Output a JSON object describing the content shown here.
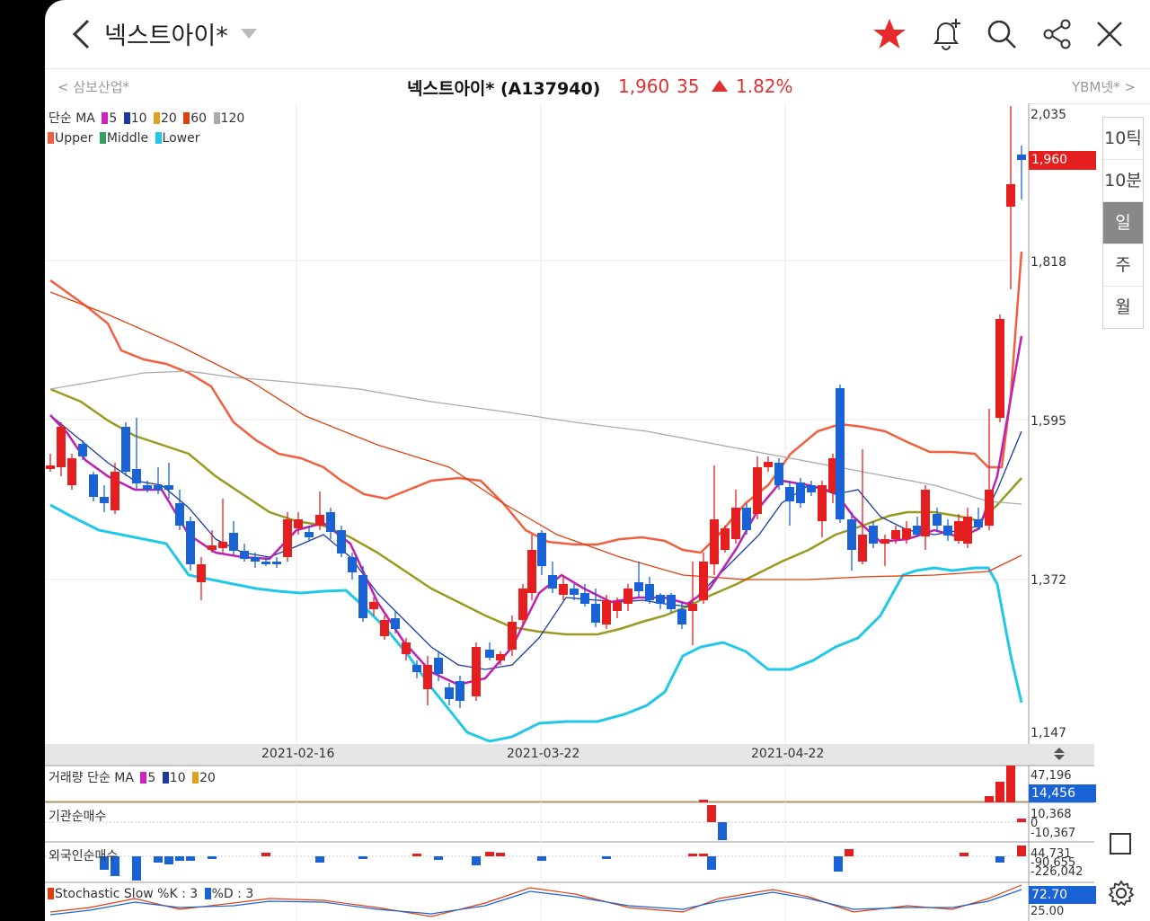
{
  "header": {
    "title": "넥스트아이*",
    "icons": [
      "back-icon",
      "star-icon",
      "bell-add-icon",
      "search-icon",
      "share-icon",
      "close-icon"
    ]
  },
  "infobar": {
    "prev_stock": "< 삼보산업*",
    "stock_name": "넥스트아이* (A137940)",
    "price": "1,960",
    "change": "35",
    "change_pct": "1.82%",
    "next_stock": "YBM넷* >"
  },
  "legend": {
    "ma_prefix": "단순 MA",
    "ma_periods": [
      "5",
      "10",
      "20",
      "60",
      "120"
    ],
    "ma_colors": [
      "#d020c0",
      "#1a3aa0",
      "#e0a020",
      "#e04010",
      "#aaaaaa"
    ],
    "bb": [
      "Upper",
      "Middle",
      "Lower"
    ],
    "bb_colors": [
      "#f06040",
      "#30a060",
      "#20c8e8"
    ]
  },
  "price_axis": [
    "2,035",
    "1,818",
    "1,595",
    "1,372",
    "1,147"
  ],
  "current_price_tag": "1,960",
  "dates": [
    "2021-02-16",
    "2021-03-22",
    "2021-04-22"
  ],
  "periods": [
    "10틱",
    "10분",
    "일",
    "주",
    "월"
  ],
  "active_period": "일",
  "volume": {
    "label": "거래량 단순 MA",
    "ma_periods": [
      "5",
      "10",
      "20"
    ],
    "values": [
      "47,196"
    ],
    "tag": "14,456"
  },
  "institution": {
    "label": "기관순매수",
    "values": [
      "10,368",
      "0",
      "-10,367"
    ]
  },
  "foreign": {
    "label": "외국인순매수",
    "values": [
      "44,731",
      "-90,655",
      "-226,042"
    ]
  },
  "stochastic": {
    "label_k": "Stochastic Slow %K : 3",
    "label_d": "%D : 3",
    "tag": "72.70",
    "low": "25.00"
  },
  "colors": {
    "up": "#e51f1f",
    "down": "#1a63d6"
  }
}
